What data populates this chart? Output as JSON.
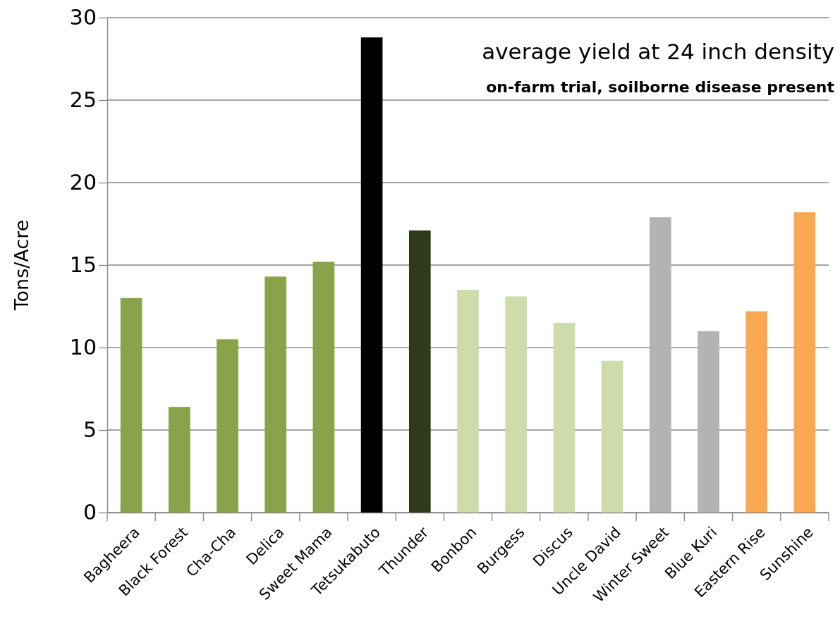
{
  "chart_data": {
    "type": "bar",
    "title": "average yield at 24 inch density",
    "subtitle": "on-farm trial, soilborne disease present",
    "ylabel": "Tons/Acre",
    "categories": [
      "Bagheera",
      "Black Forest",
      "Cha-Cha",
      "Delica",
      "Sweet Mama",
      "Tetsukabuto",
      "Thunder",
      "Bonbon",
      "Burgess",
      "Discus",
      "Uncle David",
      "Winter Sweet",
      "Blue Kuri",
      "Eastern Rise",
      "Sunshine"
    ],
    "values": [
      13.0,
      6.4,
      10.5,
      14.3,
      15.2,
      28.8,
      17.1,
      13.5,
      13.1,
      11.5,
      9.2,
      17.9,
      11.0,
      12.2,
      18.2
    ],
    "colors": [
      "#8aa34b",
      "#8aa34b",
      "#8aa34b",
      "#8aa34b",
      "#8aa34b",
      "#000000",
      "#2f3a1a",
      "#cddcaa",
      "#cddcaa",
      "#cddcaa",
      "#cddcaa",
      "#b3b3b3",
      "#b3b3b3",
      "#f9a852",
      "#f9a852"
    ],
    "ylim": [
      0,
      30
    ],
    "yticks": [
      0,
      5,
      10,
      15,
      20,
      25,
      30
    ],
    "grid": "y"
  }
}
